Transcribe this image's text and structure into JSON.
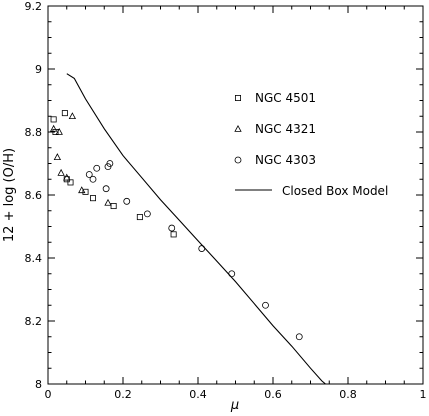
{
  "chart_data": {
    "type": "scatter",
    "xlabel": "μ",
    "ylabel": "12 + log (O/H)",
    "xlim": [
      0,
      1
    ],
    "ylim": [
      8,
      9.2
    ],
    "x_ticks": [
      0,
      0.2,
      0.4,
      0.6,
      0.8,
      1
    ],
    "y_ticks": [
      8,
      8.2,
      8.4,
      8.6,
      8.8,
      9,
      9.2
    ],
    "x_tick_labels": [
      "0",
      "0.2",
      "0.4",
      "0.6",
      "0.8",
      "1"
    ],
    "y_tick_labels": [
      "8",
      "8.2",
      "8.4",
      "8.6",
      "8.8",
      "9",
      "9.2"
    ],
    "grid": false,
    "legend_position": "right",
    "series": [
      {
        "name": "NGC 4501",
        "marker": "square",
        "points": [
          [
            0.015,
            8.84
          ],
          [
            0.02,
            8.8
          ],
          [
            0.045,
            8.86
          ],
          [
            0.05,
            8.65
          ],
          [
            0.06,
            8.64
          ],
          [
            0.1,
            8.61
          ],
          [
            0.12,
            8.59
          ],
          [
            0.175,
            8.565
          ],
          [
            0.245,
            8.53
          ],
          [
            0.335,
            8.475
          ]
        ]
      },
      {
        "name": "NGC 4321",
        "marker": "triangle",
        "points": [
          [
            0.015,
            8.81
          ],
          [
            0.025,
            8.72
          ],
          [
            0.03,
            8.8
          ],
          [
            0.035,
            8.67
          ],
          [
            0.05,
            8.655
          ],
          [
            0.065,
            8.85
          ],
          [
            0.09,
            8.615
          ],
          [
            0.16,
            8.575
          ]
        ]
      },
      {
        "name": "NGC 4303",
        "marker": "circle",
        "points": [
          [
            0.11,
            8.665
          ],
          [
            0.12,
            8.65
          ],
          [
            0.13,
            8.685
          ],
          [
            0.155,
            8.62
          ],
          [
            0.16,
            8.69
          ],
          [
            0.165,
            8.7
          ],
          [
            0.21,
            8.58
          ],
          [
            0.265,
            8.54
          ],
          [
            0.33,
            8.495
          ],
          [
            0.41,
            8.43
          ],
          [
            0.49,
            8.35
          ],
          [
            0.58,
            8.25
          ],
          [
            0.67,
            8.15
          ]
        ]
      },
      {
        "name": "Closed Box Model",
        "marker": "line",
        "points": [
          [
            0.05,
            8.985
          ],
          [
            0.07,
            8.97
          ],
          [
            0.1,
            8.905
          ],
          [
            0.15,
            8.81
          ],
          [
            0.2,
            8.725
          ],
          [
            0.25,
            8.655
          ],
          [
            0.3,
            8.585
          ],
          [
            0.35,
            8.52
          ],
          [
            0.4,
            8.455
          ],
          [
            0.45,
            8.39
          ],
          [
            0.5,
            8.325
          ],
          [
            0.55,
            8.255
          ],
          [
            0.6,
            8.185
          ],
          [
            0.65,
            8.12
          ],
          [
            0.7,
            8.05
          ],
          [
            0.73,
            8.01
          ],
          [
            0.74,
            8.0
          ]
        ]
      }
    ]
  }
}
